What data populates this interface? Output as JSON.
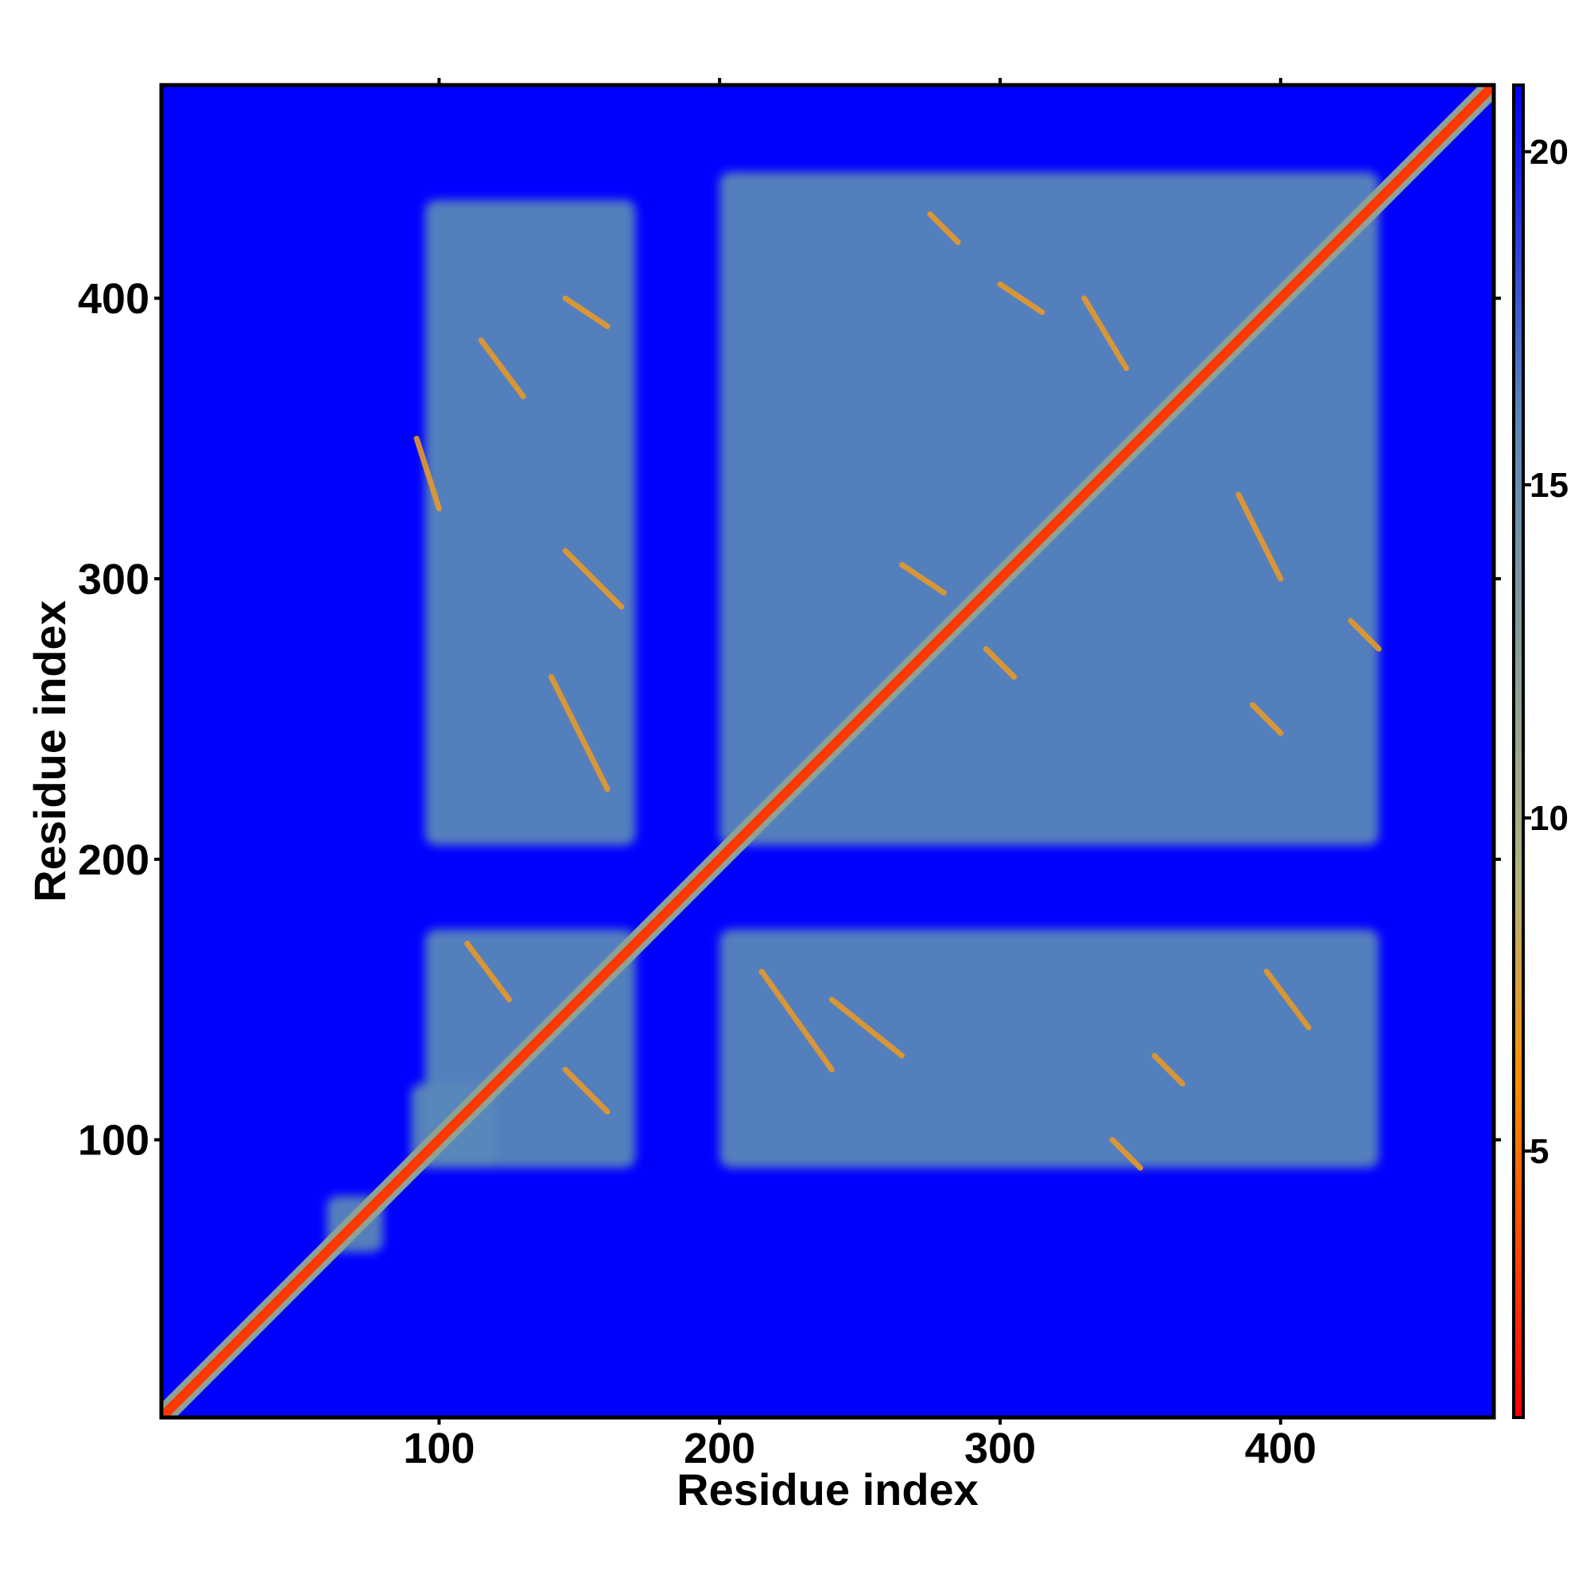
{
  "chart_data": {
    "type": "heatmap",
    "title": "",
    "xlabel": "Residue index",
    "ylabel": "Residue index",
    "xlim": [
      1,
      476
    ],
    "ylim": [
      1,
      476
    ],
    "x_ticks": [
      "100",
      "200",
      "300",
      "400"
    ],
    "y_ticks": [
      "100",
      "200",
      "300",
      "400"
    ],
    "x_tick_values": [
      100,
      200,
      300,
      400
    ],
    "y_tick_values": [
      100,
      200,
      300,
      400
    ],
    "colorbar": {
      "range": [
        1,
        21
      ],
      "ticks": [
        "5",
        "10",
        "15",
        "20"
      ],
      "tick_values": [
        5,
        10,
        15,
        20
      ],
      "colors": [
        "#ff0000",
        "#ff8c00",
        "#b4b47a",
        "#5a87b9",
        "#0000ff"
      ],
      "color_stops": [
        1,
        6,
        9,
        16,
        21
      ]
    },
    "background_value": 21,
    "diagonal_value": 3,
    "blocks": [
      {
        "x": [
          95,
          170
        ],
        "y": [
          205,
          435
        ],
        "value": 16
      },
      {
        "x": [
          200,
          435
        ],
        "y": [
          205,
          445
        ],
        "value": 16
      },
      {
        "x": [
          95,
          170
        ],
        "y": [
          90,
          175
        ],
        "value": 16
      },
      {
        "x": [
          200,
          435
        ],
        "y": [
          90,
          175
        ],
        "value": 16
      },
      {
        "x": [
          60,
          80
        ],
        "y": [
          60,
          80
        ],
        "value": 16
      },
      {
        "x": [
          90,
          120
        ],
        "y": [
          90,
          120
        ],
        "value": 16
      }
    ],
    "contact_segments": [
      {
        "x": [
          115,
          130
        ],
        "y": [
          365,
          385
        ],
        "value": 7
      },
      {
        "x": [
          145,
          160
        ],
        "y": [
          390,
          400
        ],
        "value": 7
      },
      {
        "x": [
          145,
          165
        ],
        "y": [
          290,
          310
        ],
        "value": 7
      },
      {
        "x": [
          140,
          160
        ],
        "y": [
          225,
          265
        ],
        "value": 7
      },
      {
        "x": [
          92,
          100
        ],
        "y": [
          325,
          350
        ],
        "value": 7
      },
      {
        "x": [
          275,
          285
        ],
        "y": [
          420,
          430
        ],
        "value": 7
      },
      {
        "x": [
          300,
          315
        ],
        "y": [
          395,
          405
        ],
        "value": 7
      },
      {
        "x": [
          330,
          345
        ],
        "y": [
          375,
          400
        ],
        "value": 7
      },
      {
        "x": [
          385,
          400
        ],
        "y": [
          300,
          330
        ],
        "value": 7
      },
      {
        "x": [
          425,
          435
        ],
        "y": [
          275,
          285
        ],
        "value": 7
      },
      {
        "x": [
          265,
          280
        ],
        "y": [
          295,
          305
        ],
        "value": 7
      },
      {
        "x": [
          295,
          305
        ],
        "y": [
          265,
          275
        ],
        "value": 7
      },
      {
        "x": [
          215,
          240
        ],
        "y": [
          125,
          160
        ],
        "value": 7
      },
      {
        "x": [
          240,
          265
        ],
        "y": [
          130,
          150
        ],
        "value": 7
      },
      {
        "x": [
          355,
          365
        ],
        "y": [
          120,
          130
        ],
        "value": 7
      },
      {
        "x": [
          340,
          350
        ],
        "y": [
          90,
          100
        ],
        "value": 7
      },
      {
        "x": [
          110,
          125
        ],
        "y": [
          150,
          170
        ],
        "value": 7
      },
      {
        "x": [
          145,
          160
        ],
        "y": [
          110,
          125
        ],
        "value": 7
      },
      {
        "x": [
          395,
          410
        ],
        "y": [
          140,
          160
        ],
        "value": 7
      },
      {
        "x": [
          390,
          400
        ],
        "y": [
          245,
          255
        ],
        "value": 7
      }
    ]
  }
}
